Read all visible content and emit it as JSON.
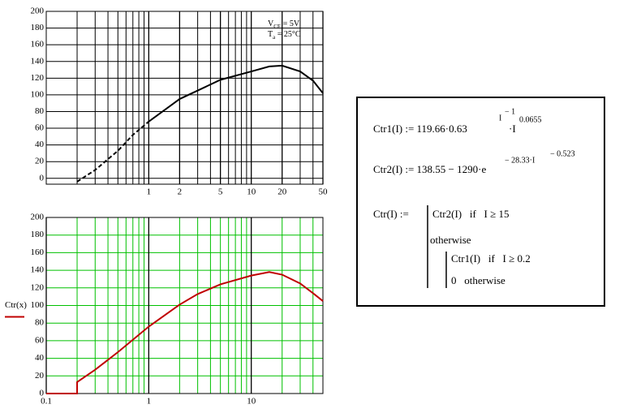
{
  "chart_data": [
    {
      "type": "line",
      "annotations": [
        {
          "main": "V",
          "sub": "CE",
          "rest": " = 5V"
        },
        {
          "main": "T",
          "sub": "a",
          "rest": " = 25°C"
        }
      ],
      "xlog": true,
      "xlim": [
        0.1,
        50
      ],
      "ylim": [
        -7,
        200
      ],
      "xticks": [
        1,
        2,
        5,
        10,
        20,
        50
      ],
      "minor_xgrid": [
        0.2,
        0.3,
        0.4,
        0.5,
        0.6,
        0.7,
        0.8,
        0.9,
        3,
        4,
        6,
        7,
        8,
        9,
        30,
        40
      ],
      "yticks": [
        0,
        20,
        40,
        60,
        80,
        100,
        120,
        140,
        160,
        180,
        200
      ],
      "grid": true,
      "grid_color": "#000000",
      "series": [
        {
          "color": "#000000",
          "dashed": true,
          "x": [
            0.2,
            0.3,
            0.5,
            0.7,
            1
          ],
          "values": [
            -4,
            10,
            33,
            52,
            68
          ]
        },
        {
          "color": "#000000",
          "x": [
            1,
            2,
            5,
            10,
            15,
            20,
            30,
            40,
            50
          ],
          "values": [
            68,
            95,
            118,
            128,
            134,
            135,
            128,
            117,
            102
          ]
        }
      ]
    },
    {
      "type": "line",
      "ylabel": "Ctr(x)",
      "xlog": true,
      "xlim": [
        0.1,
        50
      ],
      "ylim": [
        0,
        200
      ],
      "xticks": [
        0.1,
        1,
        10
      ],
      "minor_xgrid": [
        0.2,
        0.3,
        0.4,
        0.5,
        0.6,
        0.7,
        0.8,
        0.9,
        2,
        3,
        4,
        5,
        6,
        7,
        8,
        9,
        20,
        30,
        40
      ],
      "yticks": [
        0,
        20,
        40,
        60,
        80,
        100,
        120,
        140,
        160,
        180,
        200
      ],
      "grid": true,
      "grid_color": "#00c000",
      "series": [
        {
          "color": "#c00000",
          "x": [
            0.1,
            0.2,
            0.2,
            0.3,
            0.5,
            1,
            2,
            3,
            5,
            10,
            15,
            20,
            30,
            40,
            50
          ],
          "values": [
            0,
            0,
            13,
            27,
            47,
            76,
            101,
            113,
            124,
            134,
            138,
            135,
            125,
            114,
            105
          ]
        }
      ]
    }
  ],
  "formulas": {
    "ctr1": {
      "lhs": "Ctr1(I) := 119.66·0.63",
      "exp_base": "I",
      "exp_exp": "− 1",
      "mid": "·I",
      "exp": "0.0655"
    },
    "ctr2": {
      "lhs": "Ctr2(I) := 138.55 − 1290·e",
      "exp_base": "− 28.33·I",
      "exp_exp": "− 0.523"
    },
    "ctr": {
      "lhs": "Ctr(I) :=",
      "case1": "Ctr2(I)   if   I ≥ 15",
      "otherwise": "otherwise",
      "case2": "Ctr1(I)   if   I ≥ 0.2",
      "case3": "0   otherwise"
    }
  }
}
